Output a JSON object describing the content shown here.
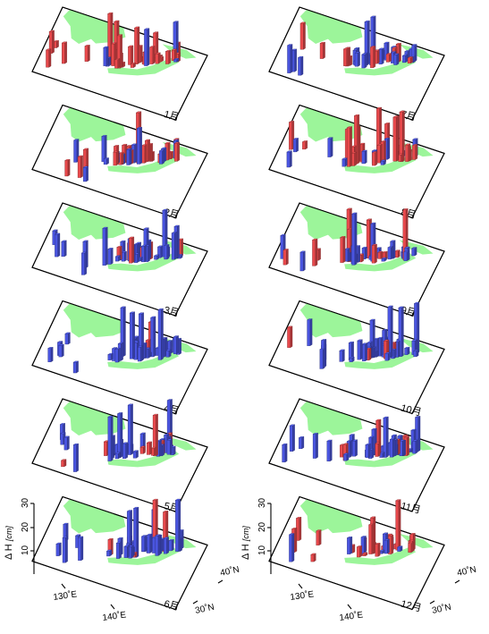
{
  "colors": {
    "positive": "#e8494c",
    "negative": "#4a55e0",
    "land": "#9cf59a",
    "plate_edge": "#000000"
  },
  "chart_data": {
    "type": "3d-bar-map",
    "panels": [
      "1月",
      "2月",
      "3月",
      "4月",
      "5月",
      "6月",
      "7月",
      "8月",
      "9月",
      "10月",
      "11月",
      "12月"
    ],
    "z_axis": {
      "label": "Δ H",
      "unit": "[cm]",
      "ticks": [
        "10",
        "20",
        "30"
      ],
      "range": [
        0,
        30
      ]
    },
    "lon_ticks": [
      "130˚E",
      "140˚E"
    ],
    "lat_ticks": [
      "30˚N",
      "40˚N"
    ],
    "series": [
      {
        "color": "positive"
      },
      {
        "color": "negative"
      }
    ]
  }
}
